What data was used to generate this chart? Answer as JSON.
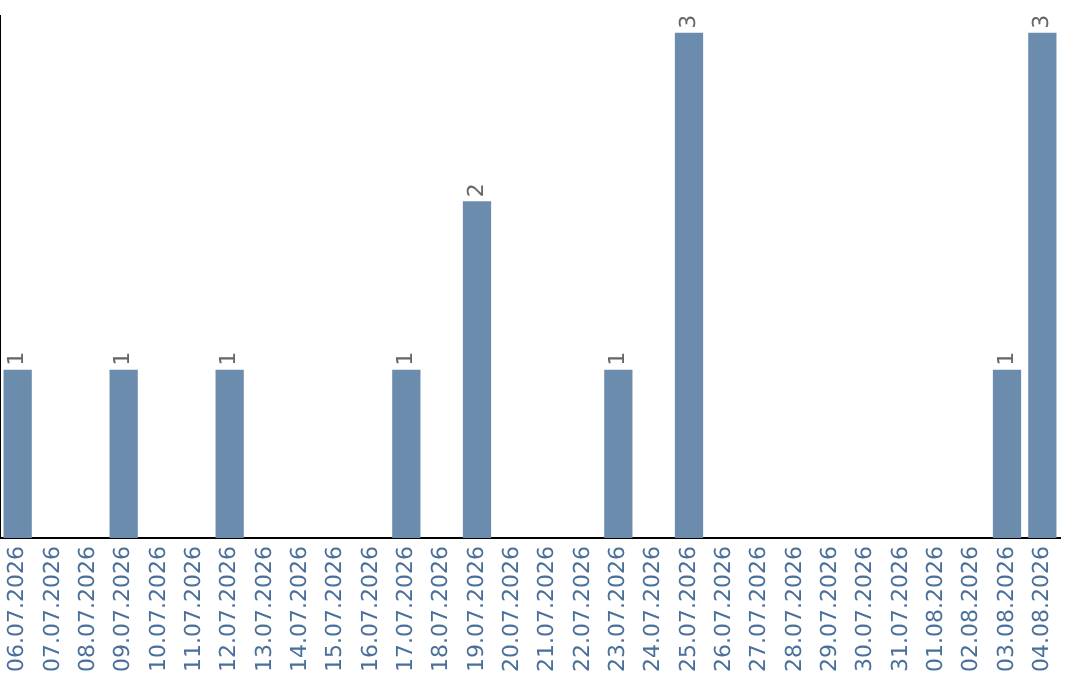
{
  "chart_data": {
    "type": "bar",
    "categories": [
      "06.07.2026",
      "07.07.2026",
      "08.07.2026",
      "09.07.2026",
      "10.07.2026",
      "11.07.2026",
      "12.07.2026",
      "13.07.2026",
      "14.07.2026",
      "15.07.2026",
      "16.07.2026",
      "17.07.2026",
      "18.07.2026",
      "19.07.2026",
      "20.07.2026",
      "21.07.2026",
      "22.07.2026",
      "23.07.2026",
      "24.07.2026",
      "25.07.2026",
      "26.07.2026",
      "27.07.2026",
      "28.07.2026",
      "29.07.2026",
      "30.07.2026",
      "31.07.2026",
      "01.08.2026",
      "02.08.2026",
      "03.08.2026",
      "04.08.2026"
    ],
    "values": [
      1,
      0,
      0,
      1,
      0,
      0,
      1,
      0,
      0,
      0,
      0,
      1,
      0,
      2,
      0,
      0,
      0,
      1,
      0,
      3,
      0,
      0,
      0,
      0,
      0,
      0,
      0,
      0,
      1,
      3
    ],
    "value_labels": [
      "1",
      null,
      null,
      "1",
      null,
      null,
      "1",
      null,
      null,
      null,
      null,
      "1",
      null,
      "2",
      null,
      null,
      null,
      "1",
      null,
      "3",
      null,
      null,
      null,
      null,
      null,
      null,
      null,
      null,
      "1",
      "3"
    ],
    "color": "#6b8cad",
    "ylim": [
      0,
      3.1
    ],
    "tick_labels": "x",
    "grid": false,
    "legend": false
  }
}
